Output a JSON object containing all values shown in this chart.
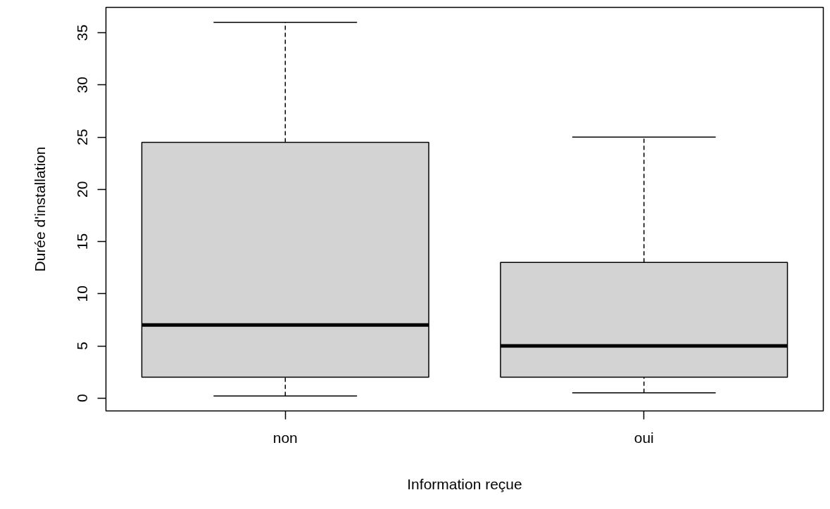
{
  "chart_data": {
    "type": "box",
    "xlabel": "Information reçue",
    "ylabel": "Durée d'installation",
    "categories": [
      "non",
      "oui"
    ],
    "boxes": [
      {
        "low": 0.2,
        "q1": 2,
        "median": 7,
        "q3": 24.5,
        "high": 36
      },
      {
        "low": 0.5,
        "q1": 2,
        "median": 5,
        "q3": 13,
        "high": 25
      }
    ],
    "color": "#d3d3d3",
    "ylim": [
      -1.23,
      37.43
    ],
    "yticks": [
      0,
      5,
      10,
      15,
      20,
      25,
      30,
      35
    ]
  }
}
